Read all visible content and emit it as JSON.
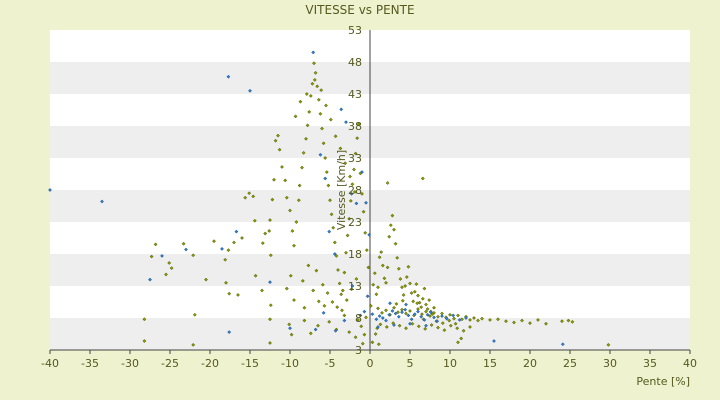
{
  "chart_data": {
    "type": "scatter",
    "title": "VITESSE vs PENTE",
    "xlabel": "Pente [%]",
    "ylabel": "Vitesse [Km/h]",
    "xlim": [
      -40,
      40
    ],
    "ylim": [
      3,
      53
    ],
    "x_ticks": [
      "-40",
      "-35",
      "-30",
      "-25",
      "-20",
      "-15",
      "-10",
      "-5",
      "0",
      "5",
      "10",
      "15",
      "20",
      "25",
      "30",
      "35",
      "40"
    ],
    "y_ticks": [
      "53",
      "48",
      "43",
      "38",
      "33",
      "28",
      "23",
      "18",
      "13",
      "8",
      "3"
    ],
    "y_tick_values": [
      53,
      48,
      43,
      38,
      33,
      28,
      23,
      18,
      13,
      8,
      3
    ],
    "grid": "alternating horizontal bands",
    "colors": {
      "background": "#eef2cf",
      "band_light": "#ffffff",
      "band_dark": "#eeeeee",
      "axis": "#444444",
      "text": "#555a1f",
      "marker_primary": "#8a9a00",
      "marker_secondary": "#2f7fd0"
    },
    "series": [
      {
        "marker": "diamond-olive",
        "points": [
          [
            -28.2,
            7.8
          ],
          [
            -27.3,
            17.6
          ],
          [
            -26.8,
            19.5
          ],
          [
            -25.5,
            14.8
          ],
          [
            -25.1,
            16.6
          ],
          [
            -23.3,
            19.6
          ],
          [
            -22.1,
            17.8
          ],
          [
            -21.9,
            8.5
          ],
          [
            -20.5,
            14.0
          ],
          [
            -19.5,
            20.0
          ],
          [
            -18.1,
            17.1
          ],
          [
            -17.7,
            18.6
          ],
          [
            -17.6,
            11.8
          ],
          [
            -17.0,
            19.8
          ],
          [
            -16.0,
            20.5
          ],
          [
            -15.6,
            26.8
          ],
          [
            -15.1,
            27.5
          ],
          [
            -14.6,
            27.0
          ],
          [
            -14.4,
            23.2
          ],
          [
            -13.4,
            19.7
          ],
          [
            -13.1,
            21.2
          ],
          [
            -12.5,
            23.3
          ],
          [
            -12.6,
            21.6
          ],
          [
            -12.4,
            17.8
          ],
          [
            -12.2,
            26.5
          ],
          [
            -12.0,
            29.6
          ],
          [
            -11.5,
            36.5
          ],
          [
            -11.8,
            35.7
          ],
          [
            -11.3,
            34.3
          ],
          [
            -11.0,
            31.6
          ],
          [
            -10.6,
            29.5
          ],
          [
            -10.4,
            26.8
          ],
          [
            -10.0,
            24.8
          ],
          [
            -9.7,
            21.6
          ],
          [
            -9.5,
            19.3
          ],
          [
            -9.2,
            23.0
          ],
          [
            -8.9,
            26.4
          ],
          [
            -8.8,
            28.7
          ],
          [
            -8.5,
            31.5
          ],
          [
            -8.3,
            33.8
          ],
          [
            -8.0,
            36.0
          ],
          [
            -7.8,
            38.1
          ],
          [
            -7.6,
            40.2
          ],
          [
            -7.4,
            42.7
          ],
          [
            -7.2,
            44.6
          ],
          [
            -7.0,
            47.8
          ],
          [
            -6.8,
            46.3
          ],
          [
            -6.6,
            44.2
          ],
          [
            -6.4,
            42.1
          ],
          [
            -6.2,
            39.9
          ],
          [
            -6.0,
            37.6
          ],
          [
            -5.8,
            35.3
          ],
          [
            -5.6,
            33.0
          ],
          [
            -5.4,
            30.8
          ],
          [
            -5.2,
            28.7
          ],
          [
            -5.0,
            26.4
          ],
          [
            -4.8,
            24.2
          ],
          [
            -4.6,
            22.1
          ],
          [
            -4.4,
            19.8
          ],
          [
            -4.2,
            17.7
          ],
          [
            -4.0,
            15.5
          ],
          [
            -3.8,
            13.4
          ],
          [
            -3.6,
            11.7
          ],
          [
            -3.4,
            12.3
          ],
          [
            -3.2,
            15.1
          ],
          [
            -3.0,
            18.2
          ],
          [
            -2.8,
            20.9
          ],
          [
            -2.6,
            23.5
          ],
          [
            -2.4,
            26.3
          ],
          [
            -2.2,
            28.9
          ],
          [
            -2.0,
            31.2
          ],
          [
            -1.8,
            33.7
          ],
          [
            -1.6,
            36.1
          ],
          [
            -1.4,
            38.3
          ],
          [
            -1.2,
            30.6
          ],
          [
            -1.0,
            27.4
          ],
          [
            -0.8,
            24.6
          ],
          [
            -0.6,
            21.3
          ],
          [
            -0.4,
            18.6
          ],
          [
            -0.2,
            15.9
          ],
          [
            -9.3,
            39.5
          ],
          [
            -8.7,
            41.8
          ],
          [
            -7.9,
            43.0
          ],
          [
            -6.9,
            45.2
          ],
          [
            -6.1,
            43.6
          ],
          [
            -5.5,
            41.2
          ],
          [
            -4.9,
            39.0
          ],
          [
            -4.3,
            36.4
          ],
          [
            -3.7,
            34.5
          ],
          [
            -3.1,
            32.2
          ],
          [
            -2.5,
            30.1
          ],
          [
            -1.9,
            27.7
          ],
          [
            -9.9,
            14.6
          ],
          [
            -8.4,
            13.8
          ],
          [
            -7.7,
            16.2
          ],
          [
            -6.7,
            15.4
          ],
          [
            -5.9,
            13.2
          ],
          [
            -5.3,
            11.9
          ],
          [
            -4.7,
            10.5
          ],
          [
            -4.1,
            9.7
          ],
          [
            -3.5,
            9.2
          ],
          [
            -2.9,
            10.8
          ],
          [
            -2.3,
            12.5
          ],
          [
            -1.7,
            14.1
          ],
          [
            -9.5,
            10.8
          ],
          [
            -8.2,
            9.6
          ],
          [
            -7.1,
            12.3
          ],
          [
            -6.4,
            10.6
          ],
          [
            -5.7,
            9.9
          ],
          [
            -10.4,
            12.6
          ],
          [
            -12.4,
            10.0
          ],
          [
            -13.5,
            12.3
          ],
          [
            -14.3,
            14.6
          ],
          [
            -16.5,
            11.6
          ],
          [
            -18.0,
            13.5
          ],
          [
            -24.8,
            15.8
          ],
          [
            -12.5,
            7.8
          ],
          [
            -3.2,
            8.4
          ],
          [
            -1.5,
            7.7
          ],
          [
            -0.5,
            8.1
          ],
          [
            0.1,
            9.9
          ],
          [
            0.4,
            13.2
          ],
          [
            0.6,
            15.0
          ],
          [
            0.8,
            11.7
          ],
          [
            1.0,
            12.8
          ],
          [
            1.2,
            17.5
          ],
          [
            1.4,
            18.3
          ],
          [
            1.6,
            16.2
          ],
          [
            1.8,
            14.2
          ],
          [
            2.0,
            13.5
          ],
          [
            2.2,
            15.9
          ],
          [
            2.4,
            20.7
          ],
          [
            2.6,
            22.5
          ],
          [
            2.8,
            24.0
          ],
          [
            3.0,
            21.8
          ],
          [
            3.2,
            19.6
          ],
          [
            3.4,
            17.4
          ],
          [
            3.6,
            15.7
          ],
          [
            3.8,
            14.1
          ],
          [
            4.0,
            12.8
          ],
          [
            4.2,
            11.6
          ],
          [
            4.4,
            13.0
          ],
          [
            4.6,
            14.4
          ],
          [
            4.8,
            16.0
          ],
          [
            5.0,
            13.4
          ],
          [
            5.2,
            11.9
          ],
          [
            5.4,
            10.6
          ],
          [
            5.6,
            12.1
          ],
          [
            5.8,
            13.3
          ],
          [
            6.0,
            11.5
          ],
          [
            6.2,
            10.4
          ],
          [
            6.4,
            9.7
          ],
          [
            6.6,
            11.0
          ],
          [
            6.8,
            12.6
          ],
          [
            7.0,
            10.1
          ],
          [
            7.2,
            9.4
          ],
          [
            7.4,
            10.8
          ],
          [
            7.6,
            9.0
          ],
          [
            7.8,
            8.6
          ],
          [
            8.0,
            9.6
          ],
          [
            1.0,
            9.5
          ],
          [
            1.5,
            8.8
          ],
          [
            2.0,
            9.2
          ],
          [
            2.5,
            8.5
          ],
          [
            3.0,
            9.6
          ],
          [
            3.5,
            8.9
          ],
          [
            4.0,
            9.3
          ],
          [
            4.5,
            8.7
          ],
          [
            5.0,
            9.1
          ],
          [
            5.5,
            8.4
          ],
          [
            6.0,
            9.4
          ],
          [
            6.5,
            8.6
          ],
          [
            7.0,
            9.0
          ],
          [
            7.5,
            8.3
          ],
          [
            8.0,
            8.8
          ],
          [
            8.5,
            8.2
          ],
          [
            9.0,
            8.7
          ],
          [
            9.5,
            8.1
          ],
          [
            10.0,
            8.5
          ],
          [
            10.5,
            7.9
          ],
          [
            11.0,
            8.4
          ],
          [
            11.5,
            7.8
          ],
          [
            12.0,
            8.2
          ],
          [
            12.5,
            7.7
          ],
          [
            13.0,
            8.0
          ],
          [
            13.5,
            7.6
          ],
          [
            14.0,
            7.9
          ],
          [
            15.0,
            7.7
          ],
          [
            16.0,
            7.8
          ],
          [
            17.0,
            7.5
          ],
          [
            18.0,
            7.3
          ],
          [
            19.0,
            7.6
          ],
          [
            20.0,
            7.2
          ],
          [
            21.0,
            7.7
          ],
          [
            22.0,
            7.1
          ],
          [
            24.0,
            7.5
          ],
          [
            24.8,
            7.6
          ],
          [
            25.3,
            7.4
          ],
          [
            1.3,
            7.0
          ],
          [
            2.1,
            6.6
          ],
          [
            2.9,
            7.2
          ],
          [
            3.7,
            6.8
          ],
          [
            4.5,
            6.4
          ],
          [
            5.3,
            7.1
          ],
          [
            6.1,
            6.7
          ],
          [
            6.9,
            6.3
          ],
          [
            7.7,
            6.9
          ],
          [
            8.5,
            6.5
          ],
          [
            9.3,
            6.1
          ],
          [
            10.1,
            6.8
          ],
          [
            10.9,
            6.4
          ],
          [
            11.7,
            6.0
          ],
          [
            12.5,
            6.6
          ],
          [
            3.3,
            10.2
          ],
          [
            4.1,
            10.7
          ],
          [
            5.9,
            10.3
          ],
          [
            6.7,
            7.8
          ],
          [
            8.3,
            7.5
          ],
          [
            9.1,
            7.2
          ],
          [
            9.9,
            7.6
          ],
          [
            10.7,
            7.1
          ],
          [
            0.3,
            4.2
          ],
          [
            0.7,
            5.5
          ],
          [
            0.9,
            6.4
          ],
          [
            1.1,
            3.9
          ],
          [
            -0.7,
            5.4
          ],
          [
            -1.8,
            5.0
          ],
          [
            -0.9,
            4.0
          ],
          [
            11.0,
            4.2
          ],
          [
            11.4,
            4.8
          ],
          [
            6.6,
            29.8
          ],
          [
            2.2,
            29.1
          ],
          [
            29.8,
            3.8
          ],
          [
            -28.2,
            4.4
          ],
          [
            -22.1,
            3.8
          ],
          [
            -12.5,
            4.1
          ],
          [
            -10.1,
            7.0
          ],
          [
            -9.8,
            5.4
          ],
          [
            -8.2,
            7.6
          ],
          [
            -7.4,
            5.6
          ],
          [
            -6.5,
            6.8
          ],
          [
            -5.1,
            7.4
          ],
          [
            -4.2,
            6.2
          ],
          [
            -2.6,
            5.8
          ],
          [
            -1.1,
            6.7
          ]
        ]
      },
      {
        "marker": "diamond-blue",
        "points": [
          [
            -40.0,
            28.0
          ],
          [
            -33.5,
            26.2
          ],
          [
            -27.5,
            14.0
          ],
          [
            -26.0,
            17.7
          ],
          [
            -23.0,
            18.7
          ],
          [
            -18.5,
            18.8
          ],
          [
            -17.7,
            45.7
          ],
          [
            -16.7,
            21.5
          ],
          [
            -17.6,
            5.8
          ],
          [
            -15.0,
            43.5
          ],
          [
            -12.5,
            13.6
          ],
          [
            -10.0,
            6.4
          ],
          [
            -7.1,
            49.5
          ],
          [
            -6.2,
            33.5
          ],
          [
            -5.6,
            29.8
          ],
          [
            -5.1,
            21.5
          ],
          [
            -4.4,
            18.0
          ],
          [
            -3.6,
            40.6
          ],
          [
            -3.0,
            38.6
          ],
          [
            -2.3,
            27.4
          ],
          [
            -1.7,
            25.9
          ],
          [
            -1.0,
            30.8
          ],
          [
            -0.5,
            26.0
          ],
          [
            -0.1,
            21.0
          ],
          [
            -0.3,
            11.4
          ],
          [
            -0.7,
            9.0
          ],
          [
            -1.2,
            8.4
          ],
          [
            -2.2,
            13.0
          ],
          [
            -3.2,
            7.6
          ],
          [
            -4.3,
            6.0
          ],
          [
            -5.8,
            8.8
          ],
          [
            0.3,
            8.6
          ],
          [
            0.8,
            7.8
          ],
          [
            1.2,
            8.3
          ],
          [
            1.6,
            8.0
          ],
          [
            2.0,
            7.6
          ],
          [
            2.4,
            8.5
          ],
          [
            2.8,
            9.1
          ],
          [
            3.2,
            8.7
          ],
          [
            3.6,
            8.2
          ],
          [
            4.0,
            8.9
          ],
          [
            4.4,
            9.3
          ],
          [
            4.8,
            8.4
          ],
          [
            5.2,
            7.8
          ],
          [
            5.6,
            8.6
          ],
          [
            6.0,
            9.0
          ],
          [
            6.4,
            8.2
          ],
          [
            6.8,
            7.7
          ],
          [
            7.2,
            8.5
          ],
          [
            7.6,
            8.9
          ],
          [
            8.0,
            8.1
          ],
          [
            8.4,
            7.5
          ],
          [
            9.0,
            8.3
          ],
          [
            9.6,
            7.9
          ],
          [
            10.4,
            8.4
          ],
          [
            11.2,
            7.7
          ],
          [
            12.0,
            8.0
          ],
          [
            1.0,
            6.6
          ],
          [
            3.0,
            6.9
          ],
          [
            5.0,
            7.1
          ],
          [
            7.0,
            6.8
          ],
          [
            2.5,
            10.3
          ],
          [
            4.5,
            10.1
          ],
          [
            15.5,
            4.4
          ],
          [
            24.1,
            3.9
          ],
          [
            -6.8,
            6.2
          ]
        ]
      }
    ]
  }
}
